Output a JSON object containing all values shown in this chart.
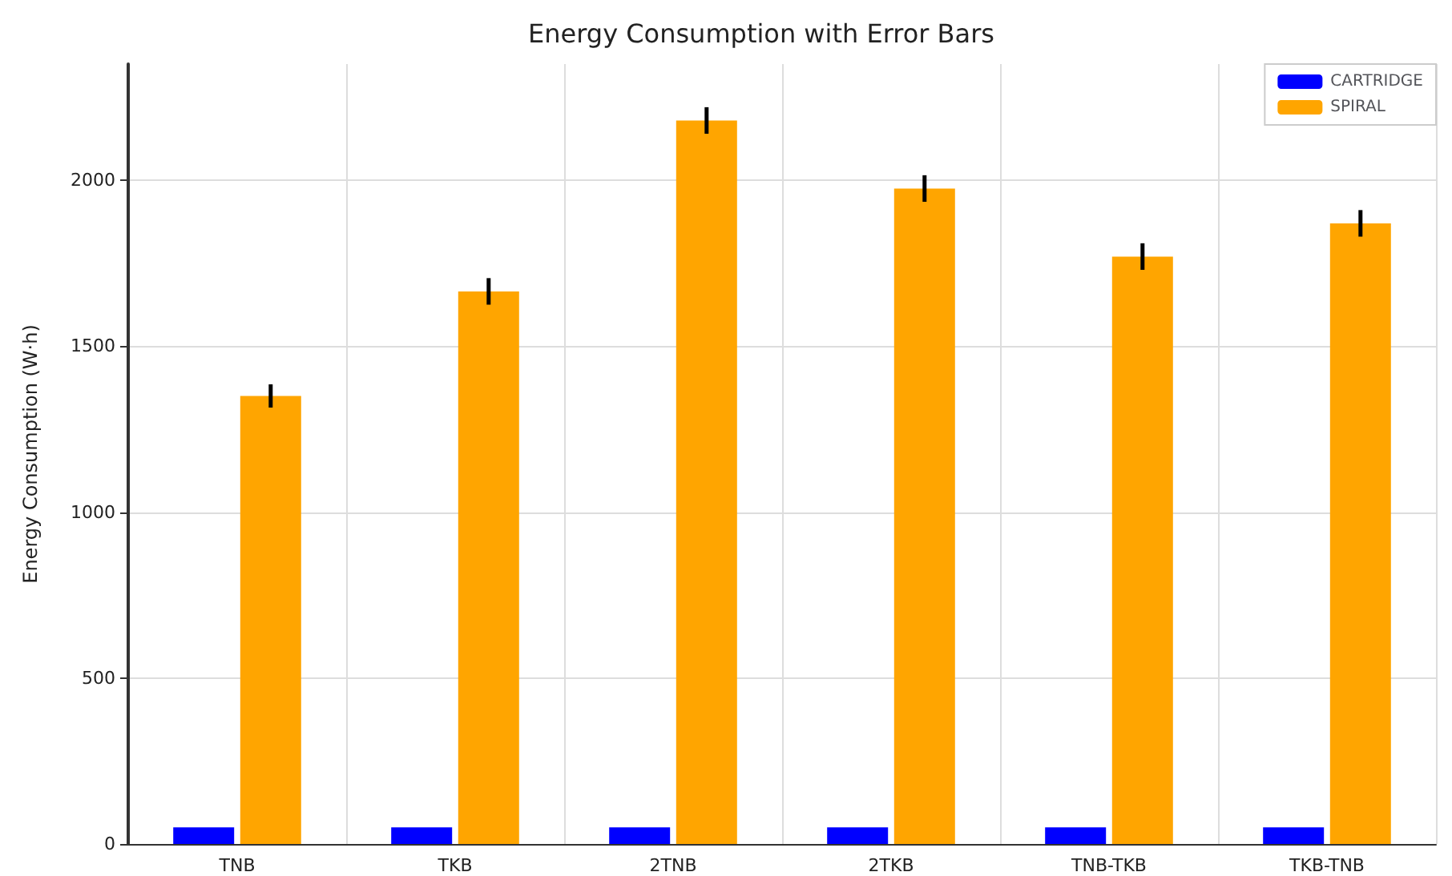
{
  "chart_data": {
    "type": "bar",
    "title": "Energy Consumption with Error Bars",
    "ylabel": "Energy Consumption (W·h)",
    "categories": [
      "TNB",
      "TKB",
      "2TNB",
      "2TKB",
      "TNB-TKB",
      "TKB-TNB"
    ],
    "series": [
      {
        "name": "CARTRIDGE",
        "color": "#0000ff",
        "values": [
          50,
          50,
          50,
          50,
          50,
          50
        ]
      },
      {
        "name": "SPIRAL",
        "color": "#ffa500",
        "values": [
          1350,
          1665,
          2180,
          1975,
          1770,
          1870
        ],
        "errors": [
          35,
          40,
          40,
          40,
          40,
          40
        ]
      }
    ],
    "ylim": [
      0,
      2350
    ],
    "yticks": [
      0,
      500,
      1000,
      1500,
      2000
    ],
    "grid": true,
    "legend": "top right"
  }
}
